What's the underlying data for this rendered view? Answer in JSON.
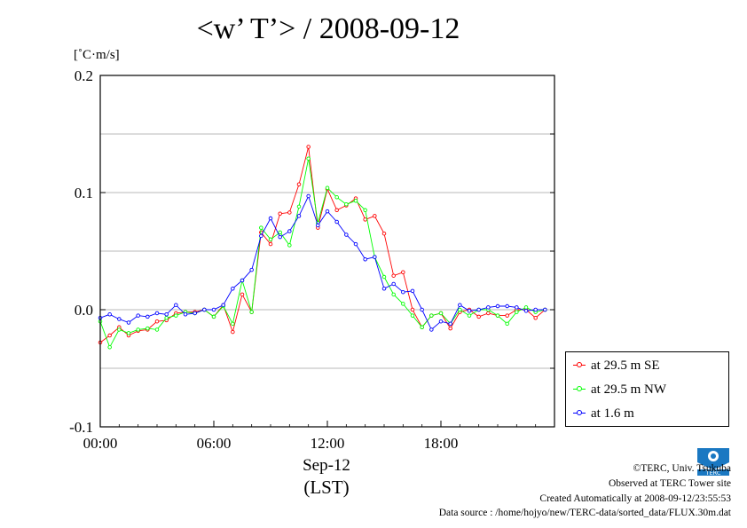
{
  "title": "<w’ T’> / 2008-09-12",
  "unit": "[˚C·m/s]",
  "x_date_label": "Sep-12",
  "x_tz_label": "(LST)",
  "footer": {
    "copyright": "©TERC, Univ. Tsukuba",
    "site": "Observed at TERC Tower site",
    "created": "Created Automatically at 2008-09-12/23:55:53",
    "source": "Data source : /home/hojyo/new/TERC-data/sorted_data/FLUX.30m.dat"
  },
  "logo_text": "TERC",
  "chart_data": {
    "type": "line",
    "title": "<w’ T’> / 2008-09-12",
    "ylabel": "[˚C·m/s]",
    "xlabel": "",
    "xlim": [
      0,
      24
    ],
    "ylim": [
      -0.1,
      0.2
    ],
    "x_ticks": [
      0,
      6,
      12,
      18
    ],
    "x_tick_labels": [
      "00:00",
      "06:00",
      "12:00",
      "18:00"
    ],
    "y_ticks": [
      -0.1,
      0.0,
      0.1,
      0.2
    ],
    "y_tick_labels": [
      "-0.1",
      "0.0",
      "0.1",
      "0.2"
    ],
    "grid": "horizontal",
    "legend_position": "bottom-right",
    "x": [
      0,
      0.5,
      1,
      1.5,
      2,
      2.5,
      3,
      3.5,
      4,
      4.5,
      5,
      5.5,
      6,
      6.5,
      7,
      7.5,
      8,
      8.5,
      9,
      9.5,
      10,
      10.5,
      11,
      11.5,
      12,
      12.5,
      13,
      13.5,
      14,
      14.5,
      15,
      15.5,
      16,
      16.5,
      17,
      17.5,
      18,
      18.5,
      19,
      19.5,
      20,
      20.5,
      21,
      21.5,
      22,
      22.5,
      23,
      23.5
    ],
    "series": [
      {
        "name": "at 29.5 m SE",
        "color": "#ff0000",
        "values": [
          -0.028,
          -0.022,
          -0.015,
          -0.022,
          -0.018,
          -0.017,
          -0.01,
          -0.009,
          -0.003,
          -0.002,
          -0.002,
          0.0,
          -0.006,
          0.004,
          -0.019,
          0.013,
          -0.002,
          0.066,
          0.056,
          0.082,
          0.083,
          0.107,
          0.139,
          0.07,
          0.103,
          0.085,
          0.089,
          0.095,
          0.077,
          0.08,
          0.065,
          0.029,
          0.032,
          0.0,
          -0.015,
          -0.005,
          -0.003,
          -0.016,
          -0.002,
          0.0,
          -0.006,
          -0.003,
          -0.005,
          -0.005,
          0.0,
          0.0,
          -0.007,
          0.0
        ]
      },
      {
        "name": "at 29.5 m NW",
        "color": "#00ff00",
        "values": [
          -0.01,
          -0.032,
          -0.017,
          -0.02,
          -0.017,
          -0.016,
          -0.017,
          -0.007,
          -0.005,
          -0.002,
          -0.003,
          0.0,
          -0.006,
          0.003,
          -0.012,
          0.025,
          -0.002,
          0.07,
          0.06,
          0.066,
          0.055,
          0.088,
          0.129,
          0.074,
          0.104,
          0.096,
          0.09,
          0.093,
          0.085,
          0.045,
          0.028,
          0.013,
          0.005,
          -0.005,
          -0.015,
          -0.005,
          -0.003,
          -0.012,
          0.0,
          -0.005,
          0.0,
          0.0,
          -0.005,
          -0.012,
          -0.002,
          0.002,
          -0.002,
          0.0
        ]
      },
      {
        "name": "at 1.6 m",
        "color": "#0000ff",
        "values": [
          -0.007,
          -0.004,
          -0.008,
          -0.011,
          -0.005,
          -0.006,
          -0.003,
          -0.004,
          0.004,
          -0.004,
          -0.003,
          0.0,
          0.0,
          0.004,
          0.018,
          0.025,
          0.034,
          0.063,
          0.078,
          0.062,
          0.067,
          0.08,
          0.097,
          0.072,
          0.084,
          0.075,
          0.064,
          0.056,
          0.043,
          0.045,
          0.018,
          0.022,
          0.015,
          0.016,
          0.0,
          -0.017,
          -0.01,
          -0.012,
          0.004,
          -0.001,
          0.0,
          0.002,
          0.003,
          0.003,
          0.002,
          -0.001,
          0.0,
          0.0
        ]
      }
    ]
  }
}
